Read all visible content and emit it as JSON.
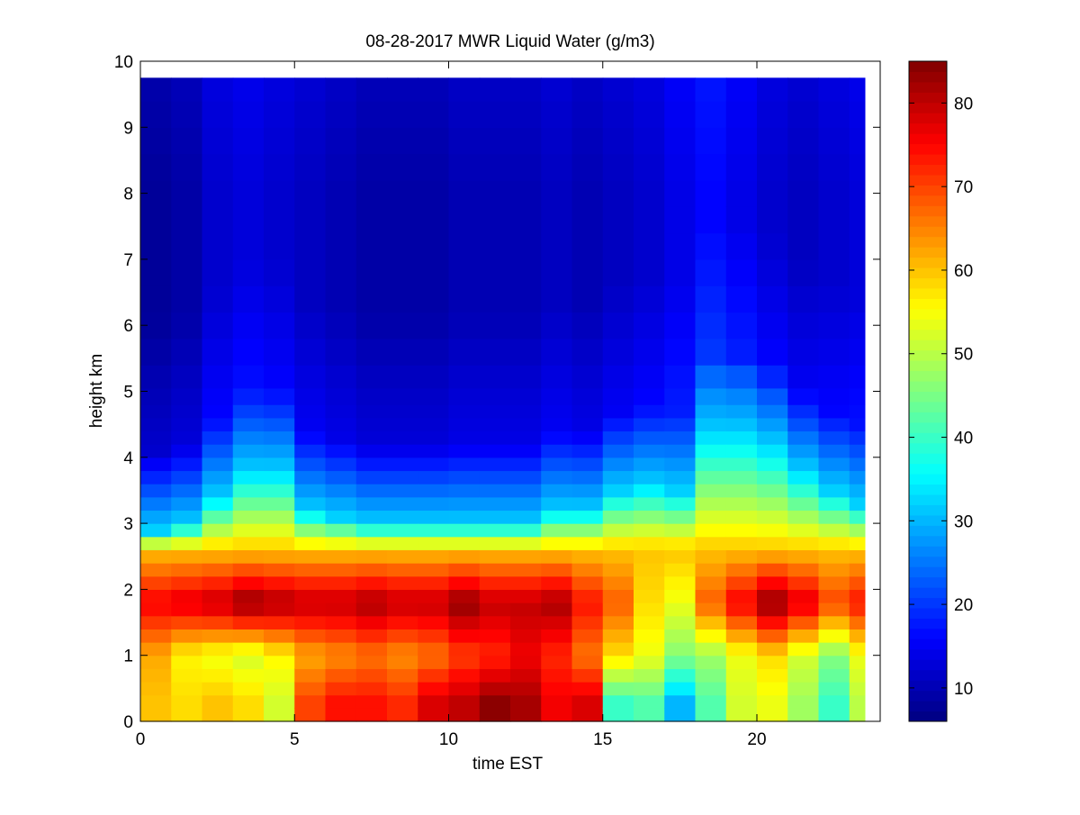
{
  "figure": {
    "background": "#ffffff"
  },
  "chart_data": {
    "type": "heatmap",
    "title": "08-28-2017 MWR Liquid Water (g/m3)",
    "xlabel": "time EST",
    "ylabel": "height km",
    "xlim": [
      0,
      24
    ],
    "ylim": [
      0,
      10
    ],
    "xticks": [
      0,
      5,
      10,
      15,
      20
    ],
    "yticks": [
      0,
      1,
      2,
      3,
      4,
      5,
      6,
      7,
      8,
      9,
      10
    ],
    "x_centers": [
      0.5,
      1.5,
      2.5,
      3.5,
      4.5,
      5.5,
      6.5,
      7.5,
      8.5,
      9.5,
      10.5,
      11.5,
      12.5,
      13.5,
      14.5,
      15.5,
      16.5,
      17.5,
      18.5,
      19.5,
      20.5,
      21.5,
      22.5,
      23.0
    ],
    "x_edges": [
      0,
      1,
      2,
      3,
      4,
      5,
      6,
      7,
      8,
      9,
      10,
      11,
      12,
      13,
      14,
      15,
      16,
      17,
      18,
      19,
      20,
      21,
      22,
      23,
      23.5
    ],
    "y_top": 9.75,
    "height_levels_km": [
      0.1,
      0.3,
      0.5,
      0.7,
      0.9,
      1.1,
      1.3,
      1.5,
      1.7,
      1.9,
      2.1,
      2.3,
      2.5,
      2.7,
      2.9,
      3.1,
      3.3,
      3.5,
      3.7,
      3.9,
      4.1,
      4.3,
      4.5,
      4.7,
      4.9,
      5.2,
      5.6,
      6.0,
      6.4,
      6.8,
      7.2,
      7.6,
      8.0,
      8.4,
      8.8,
      9.2,
      9.6
    ],
    "profiles": [
      {
        "time": 0.5,
        "low": 60,
        "mid": 62,
        "core": 76,
        "top": 2.9,
        "upper": 8
      },
      {
        "time": 1.5,
        "low": 58,
        "mid": 56,
        "core": 78,
        "top": 3.0,
        "upper": 9
      },
      {
        "time": 2.5,
        "low": 60,
        "mid": 54,
        "core": 80,
        "top": 3.4,
        "upper": 12
      },
      {
        "time": 3.5,
        "low": 58,
        "mid": 52,
        "core": 84,
        "top": 3.8,
        "upper": 13
      },
      {
        "time": 4.5,
        "low": 52,
        "mid": 56,
        "core": 82,
        "top": 3.8,
        "upper": 12
      },
      {
        "time": 5.5,
        "low": 70,
        "mid": 62,
        "core": 80,
        "top": 3.2,
        "upper": 11
      },
      {
        "time": 6.5,
        "low": 74,
        "mid": 64,
        "core": 80,
        "top": 3.1,
        "upper": 10
      },
      {
        "time": 7.5,
        "low": 74,
        "mid": 66,
        "core": 82,
        "top": 3.0,
        "upper": 9
      },
      {
        "time": 8.5,
        "low": 72,
        "mid": 64,
        "core": 80,
        "top": 3.0,
        "upper": 9
      },
      {
        "time": 9.5,
        "low": 78,
        "mid": 66,
        "core": 80,
        "top": 3.0,
        "upper": 9
      },
      {
        "time": 10.5,
        "low": 80,
        "mid": 70,
        "core": 84,
        "top": 3.0,
        "upper": 10
      },
      {
        "time": 11.5,
        "low": 84,
        "mid": 72,
        "core": 80,
        "top": 3.0,
        "upper": 10
      },
      {
        "time": 12.5,
        "low": 82,
        "mid": 76,
        "core": 80,
        "top": 3.0,
        "upper": 10
      },
      {
        "time": 13.5,
        "low": 76,
        "mid": 72,
        "core": 82,
        "top": 3.2,
        "upper": 11
      },
      {
        "time": 14.5,
        "low": 78,
        "mid": 66,
        "core": 74,
        "top": 3.2,
        "upper": 10
      },
      {
        "time": 15.5,
        "low": 40,
        "mid": 58,
        "core": 68,
        "top": 3.5,
        "upper": 11
      },
      {
        "time": 16.5,
        "low": 42,
        "mid": 54,
        "core": 58,
        "top": 3.6,
        "upper": 12
      },
      {
        "time": 17.5,
        "low": 30,
        "mid": 46,
        "core": 54,
        "top": 3.5,
        "upper": 14
      },
      {
        "time": 18.5,
        "low": 42,
        "mid": 48,
        "core": 68,
        "top": 4.4,
        "upper": 16
      },
      {
        "time": 19.5,
        "low": 52,
        "mid": 54,
        "core": 76,
        "top": 4.4,
        "upper": 14
      },
      {
        "time": 20.5,
        "low": 54,
        "mid": 58,
        "core": 84,
        "top": 4.2,
        "upper": 12
      },
      {
        "time": 21.5,
        "low": 48,
        "mid": 52,
        "core": 78,
        "top": 3.8,
        "upper": 11
      },
      {
        "time": 22.5,
        "low": 40,
        "mid": 46,
        "core": 70,
        "top": 3.5,
        "upper": 12
      },
      {
        "time": 23.0,
        "low": 50,
        "mid": 54,
        "core": 74,
        "top": 3.3,
        "upper": 13
      }
    ],
    "colorbar": {
      "range": [
        6,
        85
      ],
      "ticks": [
        10,
        20,
        30,
        40,
        50,
        60,
        70,
        80
      ],
      "colormap": "jet"
    }
  }
}
